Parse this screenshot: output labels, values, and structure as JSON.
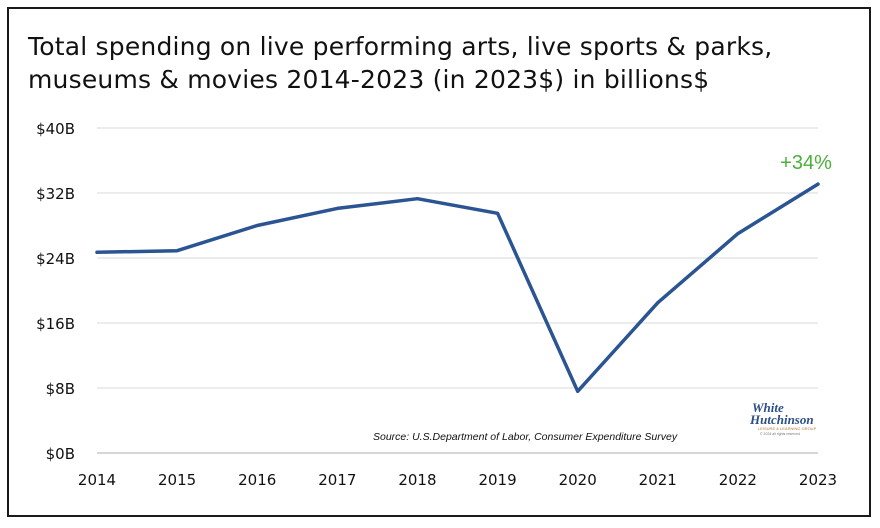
{
  "title": "Total spending on live performing arts, live sports & parks, museums & movies 2014-2023 (in 2023$) in billions$",
  "source": "Source: U.S.Department of Labor, Consumer Expenditure Survey",
  "logo": {
    "line1": "White",
    "line2": "Hutchinson",
    "line3": "LEISURE & LEARNING GROUP",
    "line4": "© 2024 all rights reserved"
  },
  "colors": {
    "line": "#2b5492",
    "annotation": "#4caf3a",
    "grid": "#d9d9d9",
    "text": "#111111"
  },
  "chart_data": {
    "type": "line",
    "title": "Total spending on live performing arts, live sports & parks, museums & movies 2014-2023 (in 2023$) in billions$",
    "xlabel": "",
    "ylabel": "",
    "x": [
      "2014",
      "2015",
      "2016",
      "2017",
      "2018",
      "2019",
      "2020",
      "2021",
      "2022",
      "2023"
    ],
    "series": [
      {
        "values": [
          24.7,
          24.9,
          28.0,
          30.1,
          31.3,
          29.5,
          7.6,
          18.5,
          27.0,
          33.1
        ]
      }
    ],
    "ylim": [
      0,
      40
    ],
    "yticks": [
      0,
      8,
      16,
      24,
      32,
      40
    ],
    "ytick_labels": [
      "$0B",
      "$8B",
      "$16B",
      "$24B",
      "$32B",
      "$40B"
    ],
    "grid": true,
    "legend": "none",
    "annotations": [
      {
        "x": "2023",
        "text": "+34%"
      }
    ]
  }
}
